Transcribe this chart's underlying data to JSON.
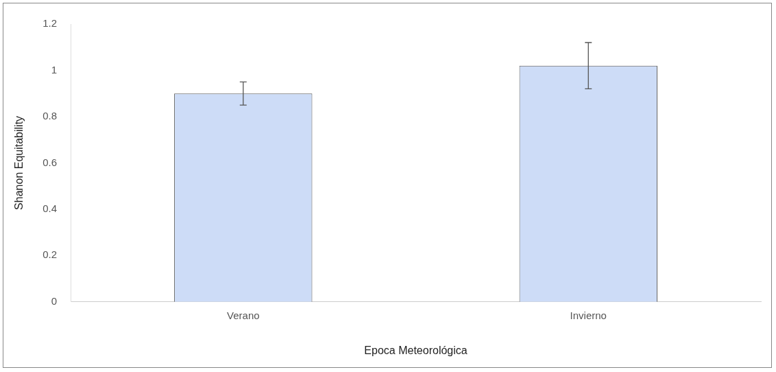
{
  "chart_data": {
    "type": "bar",
    "xlabel": "Epoca Meteorológica",
    "ylabel": "Shanon Equitability",
    "categories": [
      "Verano",
      "Invierno"
    ],
    "values": [
      0.9,
      1.02
    ],
    "errors": [
      0.05,
      0.1
    ],
    "color": "#cddcf7",
    "ylim": [
      0,
      1.2
    ],
    "yticks": [
      0,
      0.2,
      0.4,
      0.6,
      0.8,
      1,
      1.2
    ],
    "grid": false,
    "legend": false
  }
}
